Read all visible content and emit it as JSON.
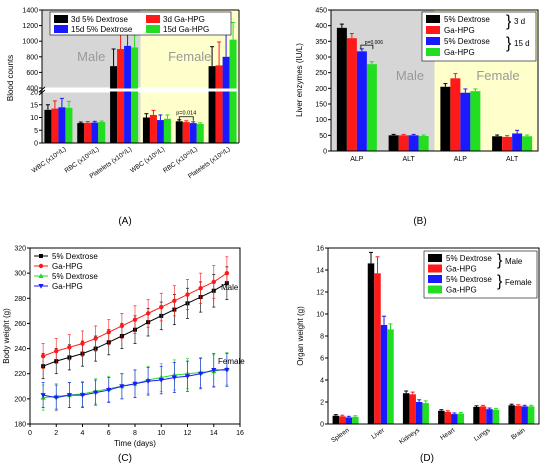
{
  "colors": {
    "black": "#000000",
    "red": "#ff1a1a",
    "blue": "#1a1aff",
    "green": "#22dd22",
    "gray": "#d6d6d6",
    "yellow": "#ffffcc"
  },
  "chart_data": [
    {
      "panel_label": "(A)",
      "type": "bar",
      "ylabel": "Blood counts",
      "lower_ylim": [
        0,
        20
      ],
      "lower_yticks": [
        "0",
        "5",
        "10",
        "15",
        "20"
      ],
      "upper_ylim": [
        400,
        1400
      ],
      "upper_yticks": [
        "400",
        "600",
        "800",
        "1000",
        "1200",
        "1400"
      ],
      "group_labels": [
        "Male",
        "Female"
      ],
      "categories": [
        "WBC (x10⁹/L)",
        "RBC (x10¹²/L)",
        "Platelets (x10⁹/L)",
        "WBC (x10⁹/L)",
        "RBC (x10¹²/L)",
        "Platelets (x10⁹/L)"
      ],
      "series": [
        {
          "name": "3d 5% Dextrose",
          "color": "black",
          "values": [
            13.0,
            7.8,
            680,
            10.0,
            8.5,
            680
          ]
        },
        {
          "name": "3d Ga-HPG",
          "color": "red",
          "values": [
            13.5,
            7.9,
            900,
            11.0,
            8.2,
            690
          ]
        },
        {
          "name": "15d 5% Dextrose",
          "color": "blue",
          "values": [
            14.0,
            8.0,
            940,
            9.0,
            7.8,
            800
          ]
        },
        {
          "name": "15d Ga-HPG",
          "color": "green",
          "values": [
            13.8,
            8.2,
            920,
            9.5,
            7.5,
            1020
          ]
        }
      ],
      "errors": [
        [
          2.0,
          0.4,
          220,
          1.5,
          0.6,
          250
        ],
        [
          3.0,
          0.5,
          200,
          1.8,
          0.5,
          300
        ],
        [
          3.5,
          0.5,
          180,
          2.0,
          0.5,
          350
        ],
        [
          2.5,
          0.4,
          160,
          1.5,
          0.4,
          220
        ]
      ],
      "annotation": "p=0.014"
    },
    {
      "panel_label": "(B)",
      "type": "bar",
      "ylabel": "Liver enzymes (IU/L)",
      "ylim": [
        0,
        450
      ],
      "yticks": [
        "0",
        "50",
        "100",
        "150",
        "200",
        "250",
        "300",
        "350",
        "400",
        "450"
      ],
      "group_labels": [
        "Male",
        "Female"
      ],
      "categories": [
        "ALP",
        "ALT",
        "ALP",
        "ALT"
      ],
      "series": [
        {
          "name": "5% Dextrose",
          "color": "black",
          "values": [
            393,
            50,
            205,
            47
          ]
        },
        {
          "name": "Ga-HPG",
          "color": "red",
          "values": [
            360,
            50,
            232,
            45
          ]
        },
        {
          "name": "5% Dextrose",
          "color": "blue",
          "values": [
            318,
            50,
            186,
            56
          ]
        },
        {
          "name": "Ga-HPG",
          "color": "green",
          "values": [
            277,
            48,
            191,
            47
          ]
        }
      ],
      "errors": [
        [
          12,
          3,
          10,
          4
        ],
        [
          15,
          3,
          15,
          4
        ],
        [
          8,
          3,
          12,
          10
        ],
        [
          8,
          3,
          7,
          4
        ]
      ],
      "legend_groups": [
        "3 d",
        "15 d"
      ],
      "annotation": "p=0.006"
    },
    {
      "panel_label": "(C)",
      "type": "line",
      "xlabel": "Time (days)",
      "ylabel": "Body weight (g)",
      "xlim": [
        0,
        16
      ],
      "ylim": [
        180,
        320
      ],
      "xticks": [
        "0",
        "2",
        "4",
        "6",
        "8",
        "10",
        "12",
        "14",
        "16"
      ],
      "yticks": [
        "180",
        "200",
        "220",
        "240",
        "260",
        "280",
        "300",
        "320"
      ],
      "x": [
        1,
        2,
        3,
        4,
        5,
        6,
        7,
        8,
        9,
        10,
        11,
        12,
        13,
        14,
        15
      ],
      "series": [
        {
          "name": "5% Dextrose",
          "color": "black",
          "marker": "square",
          "values": [
            226,
            230,
            233,
            236,
            240,
            245,
            250,
            255,
            261,
            266,
            271,
            276,
            281,
            286,
            292
          ]
        },
        {
          "name": "Ga-HPG",
          "color": "red",
          "marker": "circle",
          "values": [
            234,
            238,
            241,
            244,
            248,
            253,
            258,
            263,
            268,
            273,
            278,
            283,
            288,
            293,
            300
          ]
        },
        {
          "name": "5% Dextrose",
          "color": "green",
          "marker": "triangle-up",
          "values": [
            201,
            202,
            203,
            204,
            206,
            208,
            210,
            212,
            215,
            217,
            219,
            220,
            221,
            222,
            224
          ]
        },
        {
          "name": "Ga-HPG",
          "color": "blue",
          "marker": "triangle-down",
          "values": [
            203,
            201,
            203,
            203,
            205,
            207,
            210,
            212,
            214,
            215,
            217,
            218,
            220,
            223,
            223
          ]
        }
      ],
      "error": [
        10,
        10,
        10,
        10,
        10,
        10,
        10,
        11,
        11,
        11,
        12,
        12,
        12,
        13,
        13
      ],
      "annotations": [
        "Male",
        "Female"
      ]
    },
    {
      "panel_label": "(D)",
      "type": "bar",
      "ylabel": "Organ weight (g)",
      "ylim": [
        0,
        16
      ],
      "yticks": [
        "0",
        "2",
        "4",
        "6",
        "8",
        "10",
        "12",
        "14",
        "16"
      ],
      "categories": [
        "Spleen",
        "Liver",
        "Kidneys",
        "Heart",
        "Lungs",
        "Brain"
      ],
      "series": [
        {
          "name": "5% Dextrose",
          "color": "black",
          "values": [
            0.75,
            14.6,
            2.8,
            1.2,
            1.55,
            1.7
          ]
        },
        {
          "name": "Ga-HPG",
          "color": "red",
          "values": [
            0.7,
            13.7,
            2.7,
            1.1,
            1.6,
            1.65
          ]
        },
        {
          "name": "5% Dextrose",
          "color": "blue",
          "values": [
            0.6,
            9.0,
            2.0,
            0.9,
            1.35,
            1.6
          ]
        },
        {
          "name": "Ga-HPG",
          "color": "green",
          "values": [
            0.65,
            8.6,
            1.9,
            0.95,
            1.3,
            1.6
          ]
        }
      ],
      "errors": [
        [
          0.1,
          1.0,
          0.2,
          0.1,
          0.1,
          0.1
        ],
        [
          0.1,
          1.5,
          0.2,
          0.1,
          0.1,
          0.1
        ],
        [
          0.1,
          0.8,
          0.2,
          0.1,
          0.1,
          0.1
        ],
        [
          0.1,
          0.5,
          0.2,
          0.1,
          0.1,
          0.1
        ]
      ],
      "legend_groups": [
        "Male",
        "Female"
      ]
    }
  ]
}
